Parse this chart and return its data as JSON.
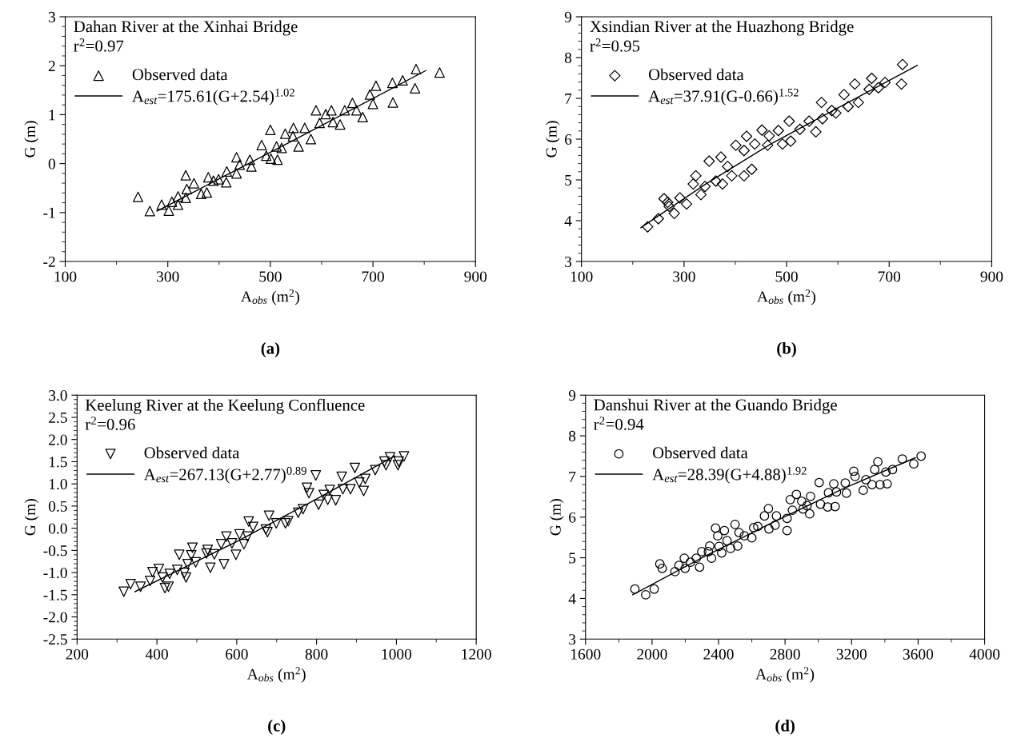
{
  "chart_data": [
    {
      "type": "scatter",
      "title": "Dahan River at the Xinhai Bridge",
      "xlabel": "A$_{obs}$ (m$^{2}$)",
      "ylabel": "G (m)",
      "annotations": [
        "r$^{2}$=0.97",
        "(a)"
      ],
      "xlim": [
        100,
        900
      ],
      "xticks": [
        100,
        300,
        500,
        700,
        900
      ],
      "ylim": [
        -2,
        3
      ],
      "yticks": [
        -2,
        -1,
        0,
        1,
        2,
        3
      ],
      "grid": false,
      "legend": "top left",
      "series": [
        {
          "name": "Observed data",
          "marker": "triangle",
          "color": "#000000",
          "x": [
            242,
            265,
            288,
            302,
            308,
            320,
            320,
            335,
            335,
            337,
            351,
            365,
            376,
            379,
            389,
            399,
            414,
            415,
            434,
            434,
            440,
            463,
            460,
            483,
            492,
            500,
            501,
            512,
            514,
            522,
            529,
            545,
            544,
            555,
            567,
            579,
            589,
            596,
            608,
            619,
            622,
            636,
            645,
            660,
            668,
            680,
            694,
            700,
            706,
            738,
            739,
            758,
            782,
            784,
            830
          ],
          "values": [
            -0.68,
            -0.97,
            -0.84,
            -0.96,
            -0.78,
            -0.84,
            -0.67,
            -0.24,
            -0.7,
            -0.52,
            -0.4,
            -0.62,
            -0.59,
            -0.28,
            -0.35,
            -0.32,
            -0.38,
            -0.16,
            0.13,
            -0.2,
            -0.02,
            -0.06,
            0.08,
            0.38,
            0.16,
            0.69,
            0.1,
            0.35,
            0.08,
            0.32,
            0.61,
            0.73,
            0.56,
            0.35,
            0.73,
            0.5,
            1.09,
            0.83,
            1.01,
            1.09,
            0.85,
            0.8,
            1.09,
            1.24,
            1.09,
            0.95,
            1.41,
            1.22,
            1.59,
            1.65,
            1.25,
            1.7,
            1.54,
            1.93,
            1.86
          ]
        },
        {
          "name": "A$_{est}$=175.61(G+2.54)$^{1.02}$",
          "type": "line",
          "color": "#000000",
          "x": [
            279,
            540,
            803
          ],
          "values": [
            -0.97,
            0.45,
            1.9
          ]
        }
      ]
    },
    {
      "type": "scatter",
      "title": "Xsindian River at the Huazhong Bridge",
      "xlabel": "A$_{obs}$ (m$^{2}$)",
      "ylabel": "G (m)",
      "annotations": [
        "r$^{2}$=0.95",
        "(b)"
      ],
      "xlim": [
        100,
        900
      ],
      "xticks": [
        100,
        300,
        500,
        700,
        900
      ],
      "ylim": [
        3,
        9
      ],
      "yticks": [
        3,
        4,
        5,
        6,
        7,
        8,
        9
      ],
      "grid": false,
      "legend": "top left",
      "series": [
        {
          "name": "Observed data",
          "marker": "diamond",
          "color": "#000000",
          "x": [
            229,
            250,
            261,
            268,
            271,
            281,
            292,
            305,
            318,
            323,
            333,
            341,
            349,
            362,
            372,
            375,
            385,
            393,
            401,
            417,
            417,
            422,
            432,
            438,
            452,
            463,
            466,
            484,
            492,
            505,
            508,
            526,
            544,
            557,
            568,
            570,
            588,
            596,
            612,
            620,
            633,
            640,
            661,
            666,
            679,
            692,
            724,
            726
          ],
          "values": [
            3.85,
            4.05,
            4.54,
            4.45,
            4.35,
            4.18,
            4.56,
            4.41,
            4.9,
            5.1,
            4.64,
            4.84,
            5.46,
            4.97,
            5.56,
            4.9,
            5.33,
            5.1,
            5.85,
            5.72,
            5.1,
            6.07,
            5.26,
            5.88,
            6.22,
            5.85,
            6.08,
            6.21,
            5.88,
            6.44,
            5.95,
            6.24,
            6.44,
            6.18,
            6.9,
            6.5,
            6.7,
            6.64,
            7.09,
            6.8,
            7.35,
            6.9,
            7.22,
            7.49,
            7.26,
            7.39,
            7.35,
            7.83
          ]
        },
        {
          "name": "A$_{est}$=37.91(G-0.66)$^{1.52}$",
          "type": "line",
          "color": "#000000",
          "x": [
            216,
            340,
            469,
            620,
            755
          ],
          "values": [
            3.83,
            4.88,
            5.88,
            6.9,
            7.81
          ]
        }
      ]
    },
    {
      "type": "scatter",
      "title": "Keelung River at the Keelung Confluence",
      "xlabel": "A$_{obs}$ (m$^{2}$)",
      "ylabel": "G (m)",
      "annotations": [
        "r$^{2}$=0.96",
        "(c)"
      ],
      "xlim": [
        200,
        1200
      ],
      "xticks": [
        200,
        400,
        600,
        800,
        1000,
        1200
      ],
      "ylim": [
        -2.5,
        3.0
      ],
      "yticks": [
        {
          "value": -2.5,
          "label": "-2.5"
        },
        {
          "value": -2.0,
          "label": "-2.0"
        },
        {
          "value": -1.5,
          "label": "-1.5"
        },
        {
          "value": -1.0,
          "label": "-1.0"
        },
        {
          "value": -0.5,
          "label": "-0.5"
        },
        {
          "value": 0.0,
          "label": "0.0"
        },
        {
          "value": 0.5,
          "label": "0.5"
        },
        {
          "value": 1.0,
          "label": "1.0"
        },
        {
          "value": 1.5,
          "label": "1.5"
        },
        {
          "value": 2.0,
          "label": "2.0"
        },
        {
          "value": 2.5,
          "label": "2.5"
        },
        {
          "value": 3.0,
          "label": "3.0"
        }
      ],
      "grid": false,
      "legend": "top left",
      "series": [
        {
          "name": "Observed data",
          "marker": "triangle_down",
          "color": "#000000",
          "x": [
            317,
            334,
            359,
            383,
            389,
            405,
            414,
            420,
            429,
            432,
            451,
            456,
            469,
            473,
            477,
            486,
            489,
            497,
            524,
            527,
            534,
            544,
            561,
            568,
            574,
            588,
            598,
            607,
            618,
            627,
            630,
            641,
            673,
            677,
            681,
            699,
            722,
            729,
            754,
            766,
            776,
            781,
            798,
            805,
            818,
            828,
            833,
            848,
            863,
            866,
            885,
            896,
            907,
            918,
            922,
            947,
            970,
            974,
            984,
            1004,
            1006,
            1019
          ],
          "values": [
            -1.43,
            -1.26,
            -1.32,
            -1.19,
            -0.99,
            -0.92,
            -1.11,
            -1.35,
            -1.32,
            -1.03,
            -0.94,
            -0.6,
            -1.01,
            -1.11,
            -0.81,
            -0.61,
            -0.44,
            -0.77,
            -0.57,
            -0.49,
            -0.89,
            -0.59,
            -0.36,
            -0.81,
            -0.19,
            -0.34,
            -0.6,
            -0.14,
            -0.36,
            -0.19,
            0.15,
            0.03,
            -0.03,
            -0.09,
            0.28,
            0.11,
            0.11,
            0.16,
            0.35,
            0.43,
            0.91,
            0.79,
            1.19,
            0.53,
            0.75,
            0.64,
            0.86,
            0.63,
            1.16,
            0.88,
            0.88,
            1.36,
            1.03,
            0.84,
            1.11,
            1.31,
            1.5,
            1.42,
            1.6,
            1.42,
            1.5,
            1.62
          ]
        },
        {
          "name": "A$_{est}$=267.13(G+2.77)$^{0.89}$",
          "type": "line",
          "color": "#000000",
          "x": [
            345,
            600,
            800,
            996
          ],
          "values": [
            -1.43,
            -0.3,
            0.66,
            1.63
          ]
        }
      ]
    },
    {
      "type": "scatter",
      "title": "Danshui River at the Guando Bridge",
      "xlabel": "A$_{obs}$ (m$^{2}$)",
      "ylabel": "G (m)",
      "annotations": [
        "r$^{2}$=0.94",
        "(d)"
      ],
      "xlim": [
        1600,
        4000
      ],
      "xticks": [
        1600,
        2000,
        2400,
        2800,
        3200,
        3600,
        4000
      ],
      "ylim": [
        3,
        9
      ],
      "yticks": [
        3,
        4,
        5,
        6,
        7,
        8,
        9
      ],
      "grid": false,
      "legend": "top left",
      "series": [
        {
          "name": "Observed data",
          "marker": "circle",
          "color": "#000000",
          "x": [
            1897,
            1962,
            2013,
            2047,
            2061,
            2138,
            2162,
            2194,
            2199,
            2231,
            2266,
            2286,
            2299,
            2339,
            2347,
            2358,
            2382,
            2395,
            2403,
            2419,
            2435,
            2451,
            2472,
            2499,
            2515,
            2523,
            2555,
            2600,
            2611,
            2636,
            2676,
            2700,
            2703,
            2740,
            2748,
            2812,
            2812,
            2831,
            2844,
            2868,
            2900,
            2908,
            2932,
            2948,
            2953,
            3005,
            3013,
            3056,
            3061,
            3093,
            3101,
            3109,
            3162,
            3169,
            3213,
            3221,
            3270,
            3286,
            3323,
            3339,
            3358,
            3371,
            3414,
            3406,
            3446,
            3505,
            3574,
            3618
          ],
          "values": [
            4.23,
            4.09,
            4.23,
            4.85,
            4.74,
            4.66,
            4.81,
            4.99,
            4.74,
            4.89,
            4.99,
            4.77,
            5.15,
            5.15,
            5.29,
            4.99,
            5.73,
            5.54,
            5.28,
            5.12,
            5.67,
            5.42,
            5.23,
            5.82,
            5.29,
            5.62,
            5.54,
            5.49,
            5.74,
            5.77,
            6.03,
            6.21,
            5.71,
            5.8,
            6.03,
            5.97,
            5.67,
            6.43,
            6.17,
            6.56,
            6.39,
            6.2,
            6.28,
            6.08,
            6.51,
            6.85,
            6.32,
            6.25,
            6.6,
            6.82,
            6.26,
            6.62,
            6.84,
            6.59,
            7.13,
            7.0,
            6.66,
            6.92,
            6.8,
            7.17,
            7.36,
            6.8,
            6.82,
            7.11,
            7.17,
            7.43,
            7.31,
            7.5
          ]
        },
        {
          "name": "A$_{est}$=28.39(G+4.88)$^{1.92}$",
          "type": "line",
          "color": "#000000",
          "x": [
            1884,
            2300,
            2716,
            3150,
            3583
          ],
          "values": [
            4.09,
            5.0,
            5.85,
            6.7,
            7.46
          ]
        }
      ]
    }
  ]
}
